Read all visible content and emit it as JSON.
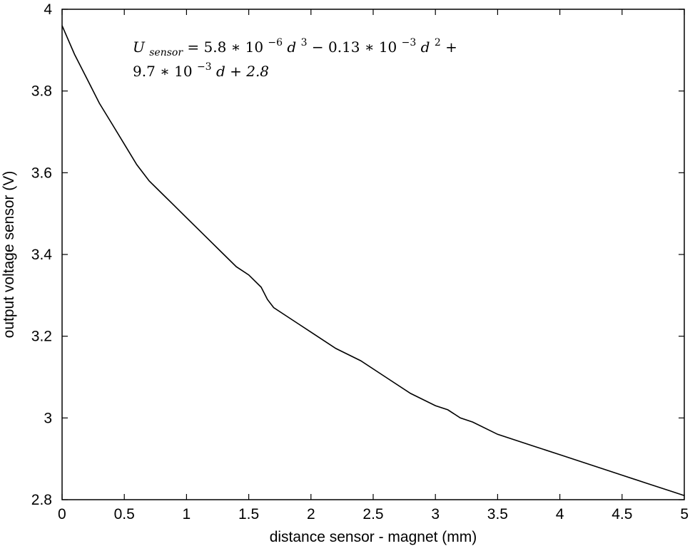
{
  "chart_data": {
    "type": "line",
    "xlabel": "distance sensor - magnet (mm)",
    "ylabel": "output voltage sensor (V)",
    "xlim": [
      0,
      5
    ],
    "ylim": [
      2.8,
      4
    ],
    "xticks": [
      0,
      0.5,
      1,
      1.5,
      2,
      2.5,
      3,
      3.5,
      4,
      4.5,
      5
    ],
    "xtick_labels": [
      "0",
      "0.5",
      "1",
      "1.5",
      "2",
      "2.5",
      "3",
      "3.5",
      "4",
      "4.5",
      "5"
    ],
    "yticks": [
      2.8,
      3,
      3.2,
      3.4,
      3.6,
      3.8,
      4
    ],
    "ytick_labels": [
      "2.8",
      "3",
      "3.2",
      "3.4",
      "3.6",
      "3.8",
      "4"
    ],
    "grid": false,
    "annotation": {
      "line1": {
        "var": "U",
        "sub": "sensor",
        "p1": " = 5.8 ∗ 10",
        "e1": "−6",
        "p2": "d",
        "e2": "3",
        "p3": " − 0.13 ∗ 10",
        "e3": "−3",
        "p4": "d",
        "e4": "2",
        "p5": " +"
      },
      "line2": {
        "p1": "9.7 ∗ 10",
        "e1": "−3",
        "p2": "d + 2.8"
      }
    },
    "series": [
      {
        "x": [
          0,
          0.1,
          0.2,
          0.3,
          0.4,
          0.5,
          0.6,
          0.7,
          0.8,
          0.9,
          1.0,
          1.1,
          1.2,
          1.3,
          1.4,
          1.5,
          1.6,
          1.65,
          1.7,
          1.8,
          1.9,
          2.0,
          2.2,
          2.4,
          2.6,
          2.8,
          3.0,
          3.1,
          3.2,
          3.3,
          3.5,
          3.8,
          4.0,
          4.2,
          4.4,
          4.5,
          4.7,
          4.9,
          5.0
        ],
        "y": [
          3.96,
          3.89,
          3.83,
          3.77,
          3.72,
          3.67,
          3.62,
          3.58,
          3.55,
          3.52,
          3.49,
          3.46,
          3.43,
          3.4,
          3.37,
          3.35,
          3.32,
          3.29,
          3.27,
          3.25,
          3.23,
          3.21,
          3.17,
          3.14,
          3.1,
          3.06,
          3.03,
          3.02,
          3.0,
          2.99,
          2.96,
          2.93,
          2.91,
          2.89,
          2.87,
          2.86,
          2.84,
          2.82,
          2.81
        ]
      }
    ]
  }
}
